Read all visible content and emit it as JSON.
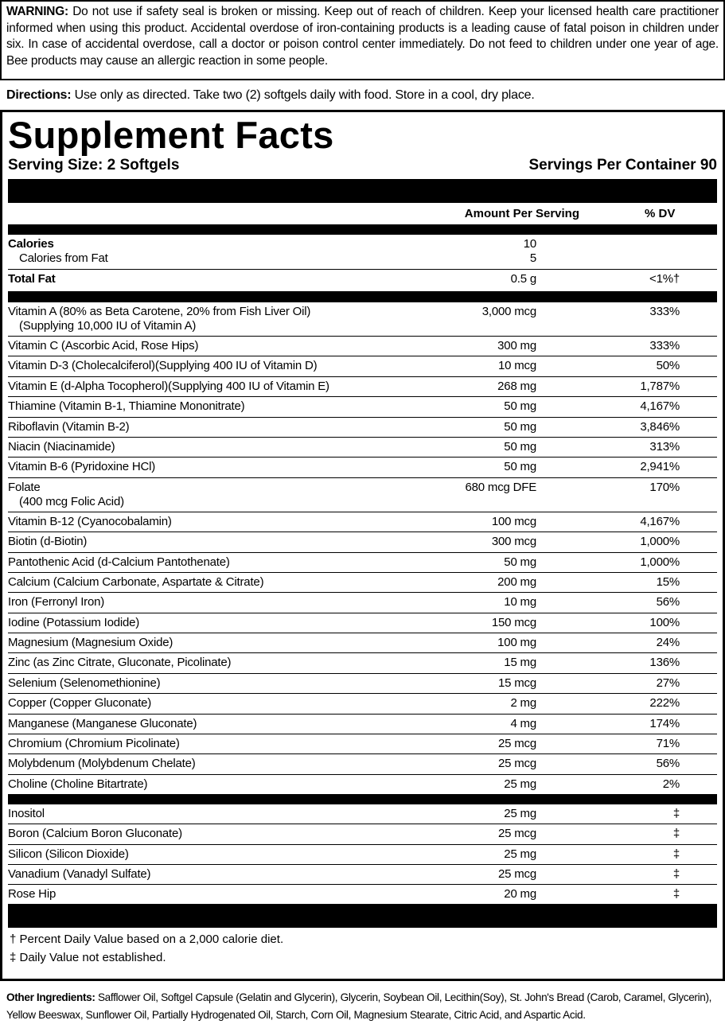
{
  "warning": {
    "label": "WARNING:",
    "text": "Do not use if safety seal is broken or missing. Keep out of reach of children. Keep your licensed health care practitioner informed when using this product. Accidental overdose of iron-containing products is a leading cause of fatal poison in children under six. In case of accidental overdose, call a doctor or poison control center immediately. Do not feed to children under one year of age. Bee products may cause an allergic reaction in some people."
  },
  "directions": {
    "label": "Directions:",
    "text": "Use only as directed. Take two (2) softgels daily with food. Store in a cool, dry place."
  },
  "facts": {
    "title": "Supplement Facts",
    "serving_size": "Serving Size: 2 Softgels",
    "servings_per_container": "Servings Per Container 90",
    "header": {
      "amount": "Amount Per Serving",
      "dv": "% DV"
    },
    "calories": {
      "label": "Calories",
      "amount": "10",
      "sub_label": "Calories from Fat",
      "sub_amount": "5"
    },
    "total_fat": {
      "name": "Total Fat",
      "amount": "0.5 g",
      "dv": "<1%†"
    },
    "nutrients": [
      {
        "name": "Vitamin A (80% as Beta Carotene, 20% from Fish Liver Oil)",
        "note": "(Supplying 10,000 IU of Vitamin A)",
        "amount": "3,000 mcg",
        "dv": "333%"
      },
      {
        "name": "Vitamin C (Ascorbic Acid, Rose Hips)",
        "amount": "300 mg",
        "dv": "333%"
      },
      {
        "name": "Vitamin D-3 (Cholecalciferol)(Supplying 400 IU of Vitamin D)",
        "amount": "10 mcg",
        "dv": "50%"
      },
      {
        "name": "Vitamin E (d-Alpha Tocopherol)(Supplying 400 IU of Vitamin E)",
        "amount": "268 mg",
        "dv": "1,787%"
      },
      {
        "name": "Thiamine (Vitamin B-1, Thiamine Mononitrate)",
        "amount": "50 mg",
        "dv": "4,167%"
      },
      {
        "name": "Riboflavin (Vitamin B-2)",
        "amount": "50 mg",
        "dv": "3,846%"
      },
      {
        "name": "Niacin (Niacinamide)",
        "amount": "50 mg",
        "dv": "313%"
      },
      {
        "name": "Vitamin B-6 (Pyridoxine HCl)",
        "amount": "50 mg",
        "dv": "2,941%"
      },
      {
        "name": "Folate",
        "note": "(400 mcg Folic Acid)",
        "amount": "680 mcg DFE",
        "dv": "170%"
      },
      {
        "name": "Vitamin B-12 (Cyanocobalamin)",
        "amount": "100 mcg",
        "dv": "4,167%"
      },
      {
        "name": "Biotin (d-Biotin)",
        "amount": "300 mcg",
        "dv": "1,000%"
      },
      {
        "name": "Pantothenic Acid (d-Calcium Pantothenate)",
        "amount": "50 mg",
        "dv": "1,000%"
      },
      {
        "name": "Calcium (Calcium Carbonate, Aspartate & Citrate)",
        "amount": "200 mg",
        "dv": "15%"
      },
      {
        "name": "Iron (Ferronyl Iron)",
        "amount": "10 mg",
        "dv": "56%"
      },
      {
        "name": "Iodine (Potassium Iodide)",
        "amount": "150 mcg",
        "dv": "100%"
      },
      {
        "name": "Magnesium (Magnesium Oxide)",
        "amount": "100 mg",
        "dv": "24%"
      },
      {
        "name": "Zinc (as Zinc Citrate, Gluconate, Picolinate)",
        "amount": "15 mg",
        "dv": "136%"
      },
      {
        "name": "Selenium (Selenomethionine)",
        "amount": "15 mcg",
        "dv": "27%"
      },
      {
        "name": "Copper (Copper Gluconate)",
        "amount": "2 mg",
        "dv": "222%"
      },
      {
        "name": "Manganese (Manganese Gluconate)",
        "amount": "4 mg",
        "dv": "174%"
      },
      {
        "name": "Chromium (Chromium Picolinate)",
        "amount": "25 mcg",
        "dv": "71%"
      },
      {
        "name": "Molybdenum (Molybdenum Chelate)",
        "amount": "25 mcg",
        "dv": "56%"
      },
      {
        "name": "Choline (Choline Bitartrate)",
        "amount": "25 mg",
        "dv": "2%"
      }
    ],
    "others": [
      {
        "name": "Inositol",
        "amount": "25 mg",
        "dv": "‡"
      },
      {
        "name": "Boron (Calcium Boron Gluconate)",
        "amount": "25 mcg",
        "dv": "‡"
      },
      {
        "name": "Silicon (Silicon Dioxide)",
        "amount": "25 mg",
        "dv": "‡"
      },
      {
        "name": "Vanadium (Vanadyl Sulfate)",
        "amount": "25 mcg",
        "dv": "‡"
      },
      {
        "name": "Rose Hip",
        "amount": "20 mg",
        "dv": "‡"
      }
    ],
    "footnotes": [
      "† Percent Daily Value based on a 2,000 calorie diet.",
      "‡ Daily Value not established."
    ]
  },
  "other_ingredients": {
    "label": "Other Ingredients:",
    "text": "Safflower Oil, Softgel Capsule (Gelatin and Glycerin), Glycerin, Soybean Oil, Lecithin(Soy), St. John's Bread (Carob, Caramel, Glycerin), Yellow Beeswax, Sunflower Oil, Partially Hydrogenated Oil, Starch, Corn Oil, Magnesium Stearate, Citric Acid, and Aspartic Acid."
  }
}
